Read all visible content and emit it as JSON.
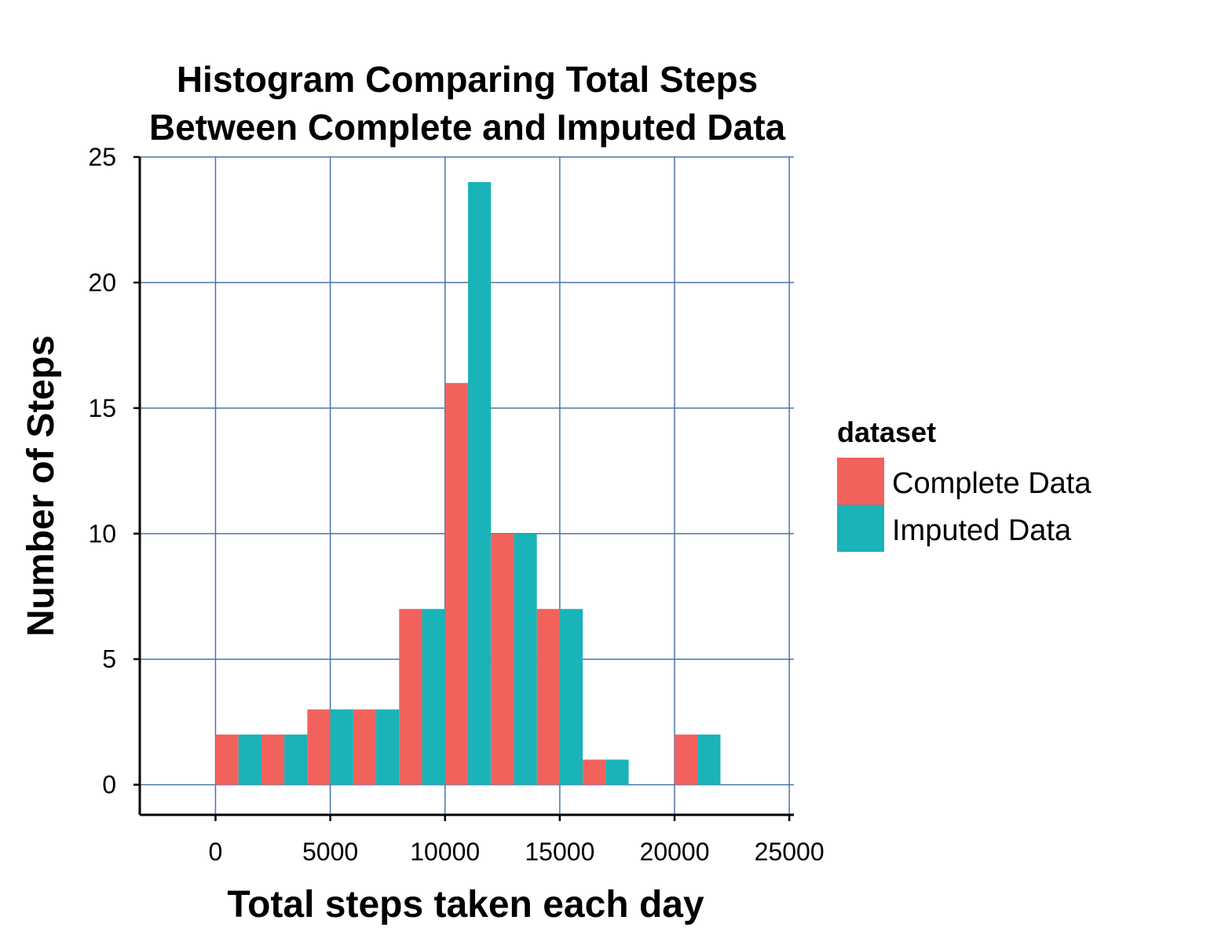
{
  "chart_data": {
    "type": "bar",
    "title_lines": [
      "Histogram Comparing Total Steps",
      "Between Complete and Imputed Data"
    ],
    "xlabel": "Total steps taken each day",
    "ylabel": "Number of Steps",
    "xlim": [
      -3300,
      25200
    ],
    "ylim": [
      -1.2,
      25
    ],
    "x_ticks": [
      0,
      5000,
      10000,
      15000,
      20000,
      25000
    ],
    "y_ticks": [
      0,
      5,
      10,
      15,
      20,
      25
    ],
    "grid": true,
    "grid_color": "#4a74a8",
    "bin_width": 2000,
    "bin_starts": [
      0,
      2000,
      4000,
      6000,
      8000,
      10000,
      12000,
      14000,
      16000,
      18000,
      20000
    ],
    "series": [
      {
        "name": "Complete Data",
        "color": "#f2625c",
        "values": [
          2,
          2,
          3,
          3,
          7,
          16,
          10,
          7,
          1,
          0,
          2
        ]
      },
      {
        "name": "Imputed Data",
        "color": "#19b3b8",
        "values": [
          2,
          2,
          3,
          3,
          7,
          24,
          10,
          7,
          1,
          0,
          2
        ]
      }
    ],
    "legend": {
      "title": "dataset",
      "placement": "right"
    }
  }
}
